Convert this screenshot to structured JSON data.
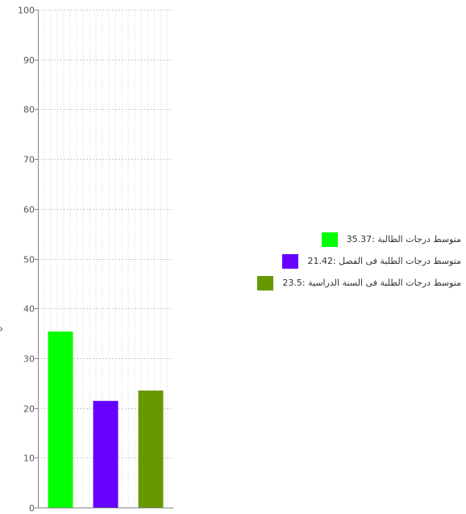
{
  "chart_data": {
    "type": "bar",
    "categories": [
      "متوسط درجات الطالبة",
      "متوسط درجات الطلبة فى الفصل",
      "متوسط درجات الطلبة فى السنة الدراسية"
    ],
    "values": [
      35.37,
      21.42,
      23.5
    ],
    "colors": [
      "#00ff00",
      "#6600ff",
      "#669900"
    ],
    "ylim": [
      0,
      100
    ],
    "yticks": [
      0,
      10,
      20,
      30,
      40,
      50,
      60,
      70,
      80,
      90,
      100
    ],
    "grid": true,
    "legend_position": "right",
    "legend": [
      {
        "label": "متوسط درجات الطالبة :",
        "value": "35.37",
        "color": "#00ff00"
      },
      {
        "label": "متوسط درجات الطلبة فى الفصل :",
        "value": "21.42",
        "color": "#6600ff"
      },
      {
        "label": "متوسط درجات الطلبة فى السنة الدراسية :",
        "value": "23.5",
        "color": "#669900"
      }
    ],
    "ylabel": "ه"
  }
}
